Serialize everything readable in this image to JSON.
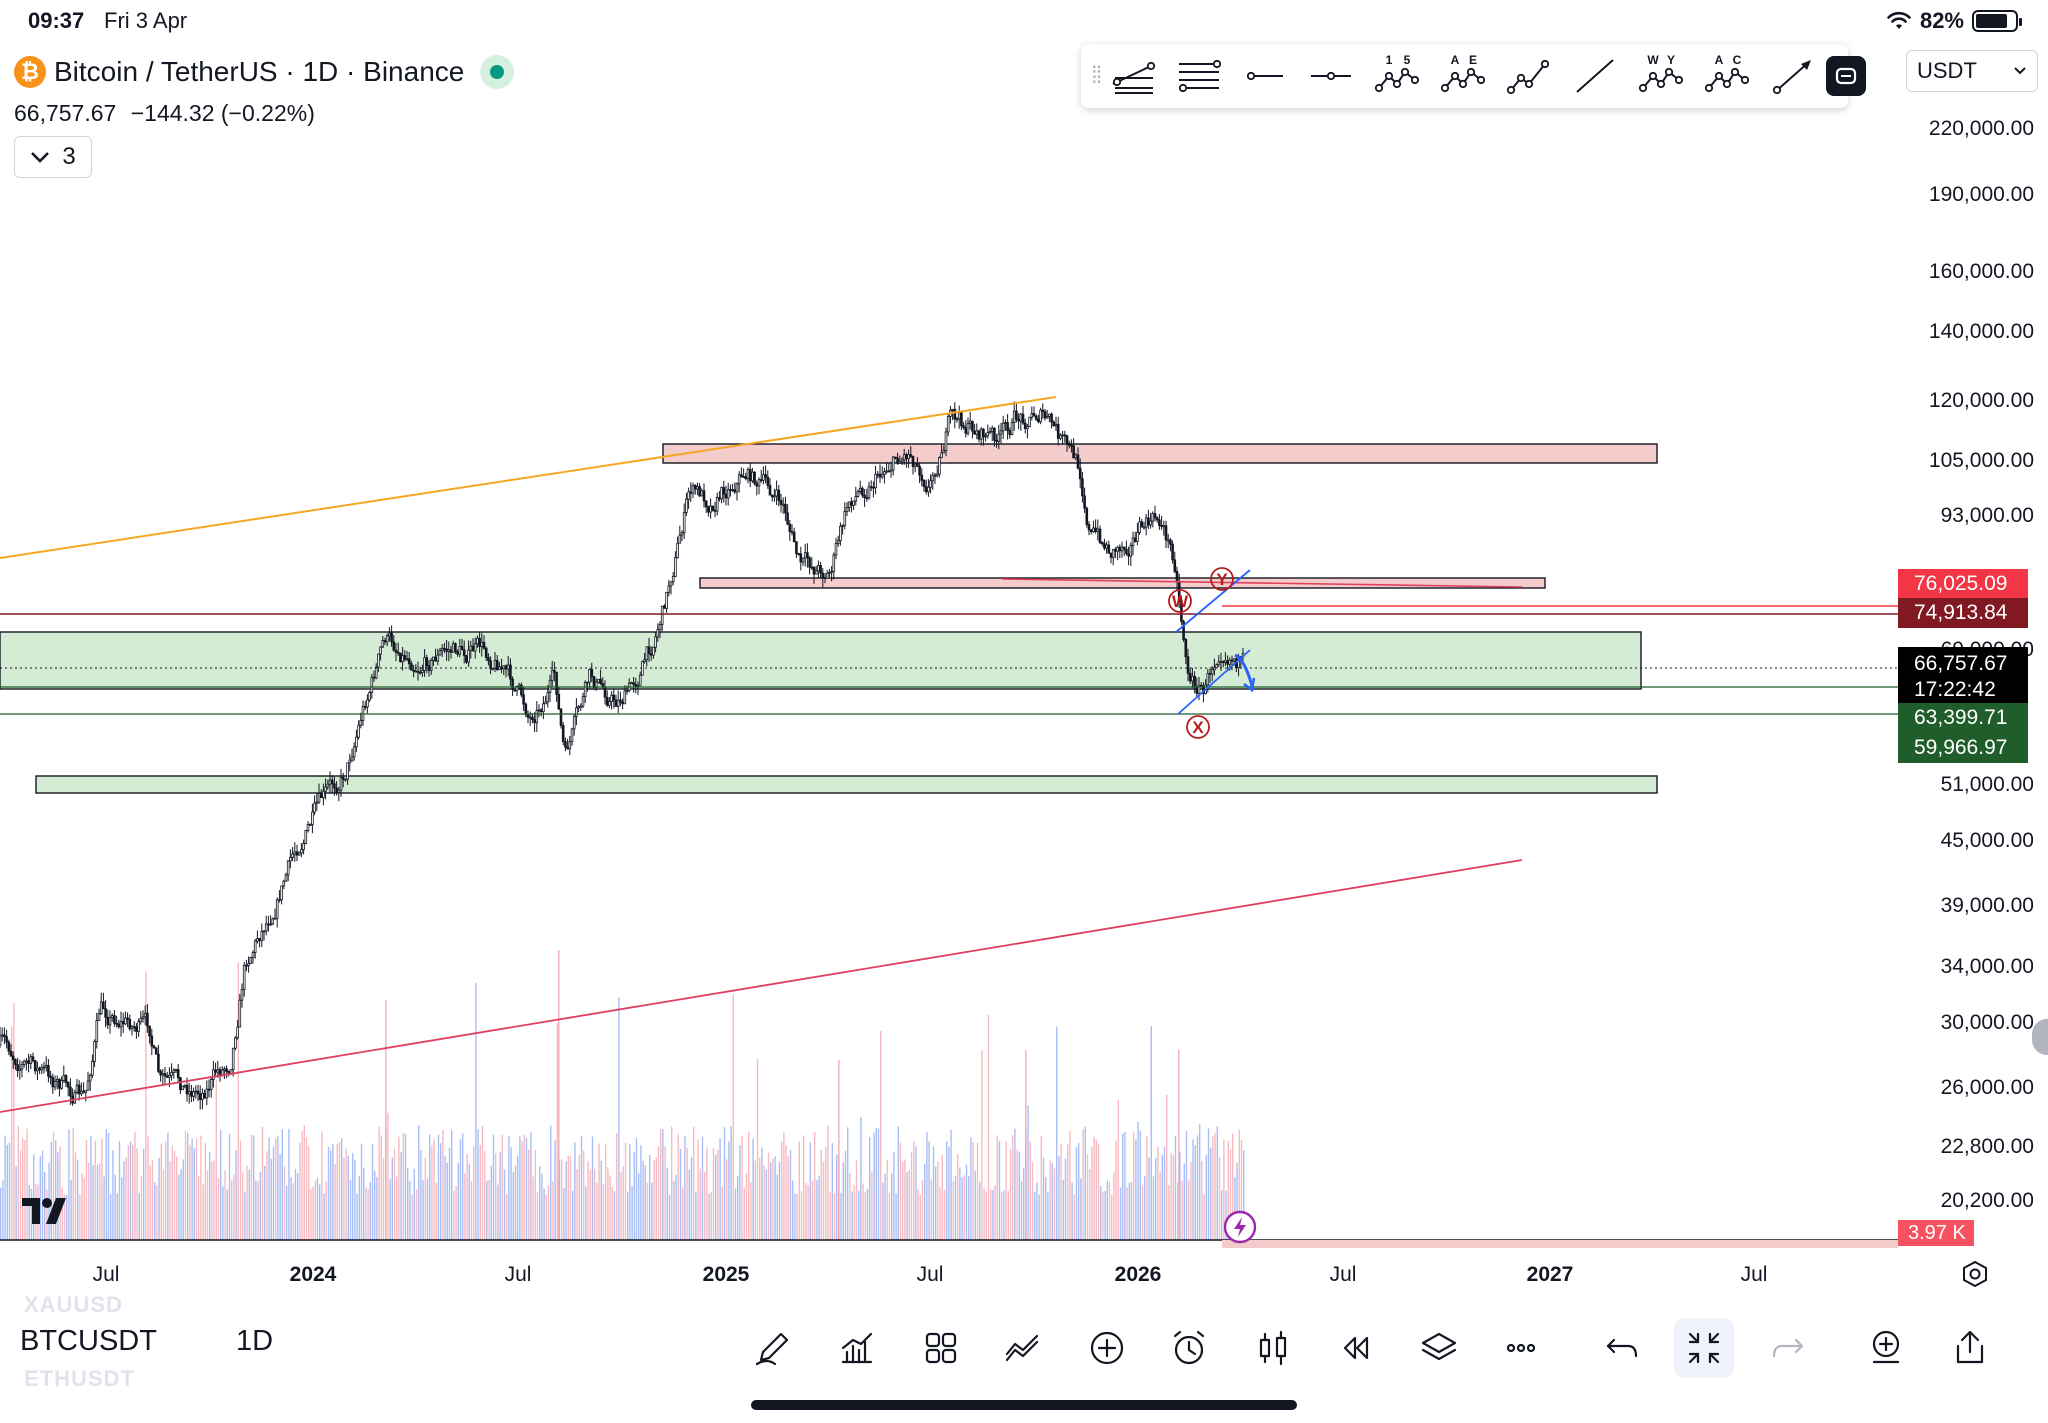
{
  "status_bar": {
    "time": "09:37",
    "date": "Fri 3 Apr",
    "battery": "82%",
    "battery_level": 0.82
  },
  "header": {
    "symbol_description": "Bitcoin / TetherUS · 1D · Binance",
    "price": "66,757.67",
    "change": "−144.32 (−0.22%)",
    "indicator_count": "3"
  },
  "toolbar": {
    "tools": [
      {
        "name": "pitchfork-icon",
        "icon": "pitchfork"
      },
      {
        "name": "fib-retracement-icon",
        "icon": "fib"
      },
      {
        "name": "horizontal-ray-icon",
        "icon": "hray"
      },
      {
        "name": "horizontal-line-icon",
        "icon": "hline"
      },
      {
        "name": "elliott-impulse-icon",
        "icon": "wave",
        "labels": [
          "1",
          "5"
        ]
      },
      {
        "name": "elliott-correction-icon",
        "icon": "wave",
        "labels": [
          "A",
          "E"
        ]
      },
      {
        "name": "elliott-triangle-icon",
        "icon": "wave3"
      },
      {
        "name": "trend-line-icon",
        "icon": "line"
      },
      {
        "name": "elliott-double-combo-icon",
        "icon": "wave",
        "labels": [
          "W",
          "Y"
        ]
      },
      {
        "name": "elliott-abc-icon",
        "icon": "wave",
        "labels": [
          "A",
          "C"
        ]
      },
      {
        "name": "arrow-icon",
        "icon": "arrow"
      }
    ]
  },
  "currency": {
    "selected": "USDT"
  },
  "price_scale": {
    "labels": [
      "220,000.00",
      "190,000.00",
      "160,000.00",
      "140,000.00",
      "120,000.00",
      "105,000.00",
      "93,000.00",
      "69,000.00",
      "51,000.00",
      "45,000.00",
      "39,000.00",
      "34,000.00",
      "30,000.00",
      "26,000.00",
      "22,800.00",
      "20,200.00"
    ],
    "badges": [
      {
        "text": "76,025.09",
        "color": "#f23645"
      },
      {
        "text": "74,913.84",
        "color": "#801922"
      },
      {
        "text": "66,757.67",
        "sub": "17:22:42",
        "color": "#000000"
      },
      {
        "text": "63,399.71",
        "color": "#1f5e2a"
      },
      {
        "text": "59,966.97",
        "color": "#1f5e2a"
      },
      {
        "text": "3.97 K",
        "color": "#f7525f"
      }
    ]
  },
  "time_axis": {
    "labels": [
      {
        "text": "Jul",
        "bold": false
      },
      {
        "text": "2024",
        "bold": true
      },
      {
        "text": "Jul",
        "bold": false
      },
      {
        "text": "2025",
        "bold": true
      },
      {
        "text": "Jul",
        "bold": false
      },
      {
        "text": "2026",
        "bold": true
      },
      {
        "text": "Jul",
        "bold": false
      },
      {
        "text": "2027",
        "bold": true
      },
      {
        "text": "Jul",
        "bold": false
      }
    ]
  },
  "annotations": {
    "wave_labels": [
      "W",
      "Y",
      "X"
    ]
  },
  "bottom": {
    "prev_symbol": "XAUUSD",
    "symbol": "BTCUSDT",
    "next_symbol": "ETHUSDT",
    "interval": "1D",
    "tools": [
      {
        "name": "drawing-tools-icon"
      },
      {
        "name": "indicators-icon"
      },
      {
        "name": "templates-icon"
      },
      {
        "name": "compare-icon"
      },
      {
        "name": "add-icon"
      },
      {
        "name": "alert-icon"
      },
      {
        "name": "chart-type-icon"
      },
      {
        "name": "replay-icon"
      },
      {
        "name": "layers-icon"
      },
      {
        "name": "more-icon"
      },
      {
        "name": "undo-icon"
      },
      {
        "name": "fullscreen-exit-icon"
      },
      {
        "name": "redo-icon"
      },
      {
        "name": "add-alert-price-icon"
      },
      {
        "name": "share-icon"
      }
    ]
  },
  "colors": {
    "up": "#089981",
    "down": "#f23645",
    "resistance_zone": "#f4cccc",
    "support_zone": "#d4ecd4",
    "orange_trend": "#f5a623",
    "red_trend": "#e04060",
    "blue_channel": "#2962ff"
  }
}
